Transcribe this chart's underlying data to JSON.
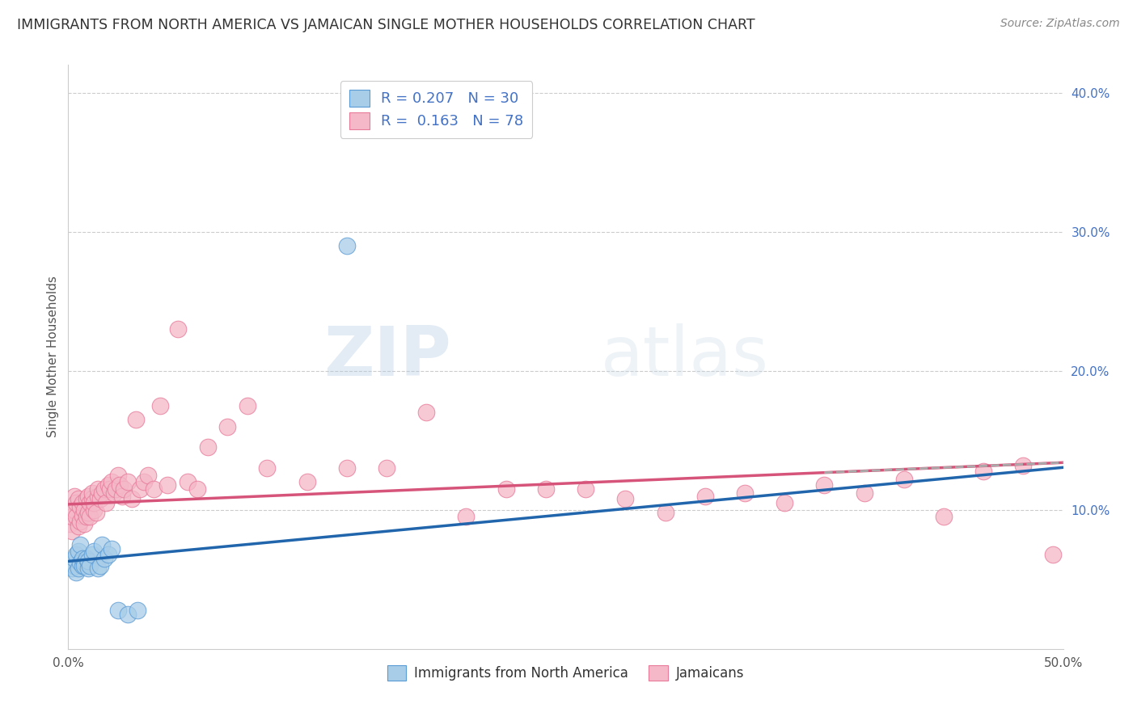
{
  "title": "IMMIGRANTS FROM NORTH AMERICA VS JAMAICAN SINGLE MOTHER HOUSEHOLDS CORRELATION CHART",
  "source": "Source: ZipAtlas.com",
  "ylabel": "Single Mother Households",
  "xlim": [
    0.0,
    0.5
  ],
  "ylim": [
    0.0,
    0.42
  ],
  "yticks_right": [
    0.1,
    0.2,
    0.3,
    0.4
  ],
  "ytick_labels_right": [
    "10.0%",
    "20.0%",
    "30.0%",
    "40.0%"
  ],
  "xtick_vals": [
    0.0,
    0.5
  ],
  "xtick_labels": [
    "0.0%",
    "50.0%"
  ],
  "legend1_label": "R = 0.207   N = 30",
  "legend2_label": "R =  0.163   N = 78",
  "legend_x_label": "Immigrants from North America",
  "legend_pink_label": "Jamaicans",
  "blue_color": "#a8cde8",
  "pink_color": "#f4b8c8",
  "blue_edge_color": "#5b9bd5",
  "pink_edge_color": "#e87a9a",
  "blue_line_color": "#2166ac",
  "pink_line_color": "#d6547a",
  "blue_scatter_x": [
    0.001,
    0.002,
    0.003,
    0.003,
    0.004,
    0.004,
    0.005,
    0.005,
    0.006,
    0.006,
    0.007,
    0.007,
    0.008,
    0.008,
    0.009,
    0.01,
    0.01,
    0.011,
    0.012,
    0.013,
    0.015,
    0.016,
    0.017,
    0.018,
    0.02,
    0.022,
    0.025,
    0.03,
    0.035,
    0.14
  ],
  "blue_scatter_y": [
    0.062,
    0.058,
    0.06,
    0.065,
    0.055,
    0.068,
    0.058,
    0.07,
    0.062,
    0.075,
    0.06,
    0.065,
    0.062,
    0.06,
    0.065,
    0.058,
    0.063,
    0.06,
    0.068,
    0.07,
    0.058,
    0.06,
    0.075,
    0.065,
    0.068,
    0.072,
    0.028,
    0.025,
    0.028,
    0.29
  ],
  "pink_scatter_x": [
    0.001,
    0.001,
    0.002,
    0.002,
    0.003,
    0.003,
    0.004,
    0.004,
    0.005,
    0.005,
    0.006,
    0.006,
    0.007,
    0.007,
    0.008,
    0.008,
    0.009,
    0.009,
    0.01,
    0.01,
    0.011,
    0.011,
    0.012,
    0.012,
    0.013,
    0.013,
    0.014,
    0.015,
    0.015,
    0.016,
    0.017,
    0.018,
    0.019,
    0.02,
    0.021,
    0.022,
    0.023,
    0.024,
    0.025,
    0.026,
    0.027,
    0.028,
    0.03,
    0.032,
    0.034,
    0.036,
    0.038,
    0.04,
    0.043,
    0.046,
    0.05,
    0.055,
    0.06,
    0.065,
    0.07,
    0.08,
    0.09,
    0.1,
    0.12,
    0.14,
    0.16,
    0.18,
    0.2,
    0.22,
    0.24,
    0.26,
    0.28,
    0.3,
    0.32,
    0.34,
    0.36,
    0.38,
    0.4,
    0.42,
    0.44,
    0.46,
    0.48,
    0.495
  ],
  "pink_scatter_y": [
    0.09,
    0.1,
    0.085,
    0.095,
    0.1,
    0.11,
    0.095,
    0.105,
    0.088,
    0.108,
    0.092,
    0.102,
    0.096,
    0.105,
    0.09,
    0.1,
    0.095,
    0.108,
    0.098,
    0.11,
    0.105,
    0.095,
    0.108,
    0.112,
    0.1,
    0.105,
    0.098,
    0.11,
    0.115,
    0.108,
    0.112,
    0.115,
    0.105,
    0.118,
    0.115,
    0.12,
    0.112,
    0.115,
    0.125,
    0.118,
    0.11,
    0.115,
    0.12,
    0.108,
    0.165,
    0.115,
    0.12,
    0.125,
    0.115,
    0.175,
    0.118,
    0.23,
    0.12,
    0.115,
    0.145,
    0.16,
    0.175,
    0.13,
    0.12,
    0.13,
    0.13,
    0.17,
    0.095,
    0.115,
    0.115,
    0.115,
    0.108,
    0.098,
    0.11,
    0.112,
    0.105,
    0.118,
    0.112,
    0.122,
    0.095,
    0.128,
    0.132,
    0.068
  ],
  "watermark_zip": "ZIP",
  "watermark_atlas": "atlas",
  "background_color": "#ffffff",
  "grid_color": "#cccccc",
  "grid_linestyle": "--"
}
